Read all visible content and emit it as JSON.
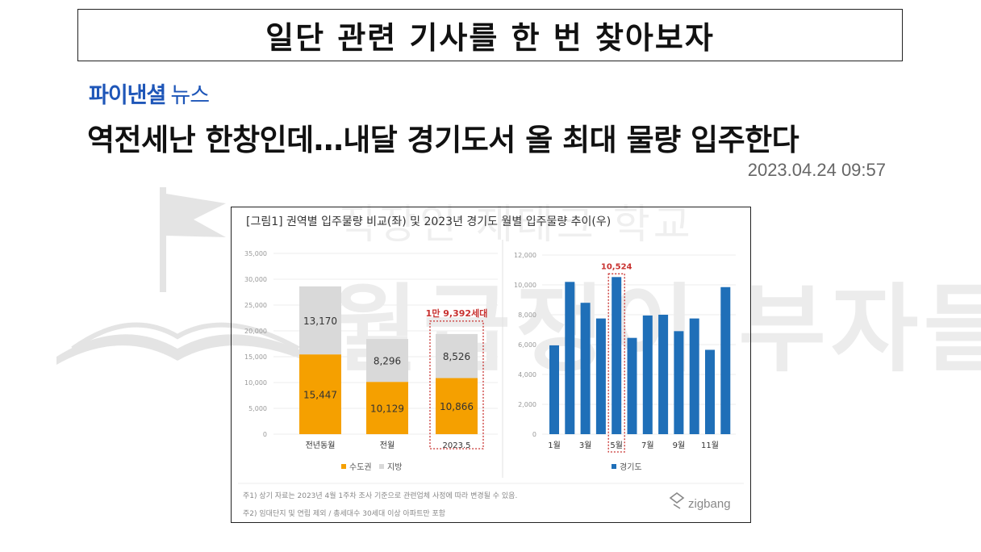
{
  "slide_title": "일단 관련 기사를 한 번 찾아보자",
  "article": {
    "publisher": "파이낸셜",
    "publisher_sub": "뉴스",
    "headline": "역전세난 한창인데…내달 경기도서 올 최대 물량 입주한다",
    "timestamp": "2023.04.24 09:57"
  },
  "watermark": {
    "line1": "직장인 재테크 학교",
    "line2": "월급쟁이 부자들"
  },
  "figure": {
    "caption": "[그림1] 권역별 입주물량 비교(좌) 및 2023년 경기도 월별 입주물량 추이(우)",
    "notes": [
      "주1) 상기 자료는 2023년 4월 1주차 조사 기준으로 관련업체 사정에 따라 변경될 수 있음.",
      "주2) 임대단지 및 연립 제외 / 총세대수 30세대 이상 아파트만 포함"
    ],
    "brand": "zigbang"
  },
  "colors": {
    "capital": "#F5A000",
    "local": "#D9D9D9",
    "gyeonggi": "#1F6FB8",
    "highlight": "#C8312F"
  },
  "chart_data": [
    {
      "type": "bar",
      "stacked": true,
      "categories": [
        "전년동월",
        "전월",
        "2023.5"
      ],
      "series": [
        {
          "name": "수도권",
          "values": [
            15447,
            10129,
            10866
          ],
          "labels": [
            "15,447",
            "10,129",
            "10,866"
          ]
        },
        {
          "name": "지방",
          "values": [
            13170,
            8296,
            8526
          ],
          "labels": [
            "13,170",
            "8,296",
            "8,526"
          ]
        }
      ],
      "ylim": [
        0,
        35000
      ],
      "yticks": [
        "0",
        "5,000",
        "10,000",
        "15,000",
        "20,000",
        "25,000",
        "30,000",
        "35,000"
      ],
      "annotation": {
        "category": "2023.5",
        "text": "1만 9,392세대"
      },
      "legend": "bottom"
    },
    {
      "type": "bar",
      "categories": [
        "1월",
        "2월",
        "3월",
        "4월",
        "5월",
        "6월",
        "7월",
        "8월",
        "9월",
        "10월",
        "11월",
        "12월"
      ],
      "tick_labels": [
        "1월",
        "",
        "3월",
        "",
        "5월",
        "",
        "7월",
        "",
        "9월",
        "",
        "11월",
        ""
      ],
      "series": [
        {
          "name": "경기도",
          "values": [
            5950,
            10200,
            8800,
            7750,
            10524,
            6450,
            7950,
            8000,
            6900,
            7750,
            5650,
            9850
          ]
        }
      ],
      "ylim": [
        0,
        12000
      ],
      "yticks": [
        "0",
        "2,000",
        "4,000",
        "6,000",
        "8,000",
        "10,000",
        "12,000"
      ],
      "annotation": {
        "category": "5월",
        "text": "10,524"
      },
      "legend": "bottom"
    }
  ]
}
